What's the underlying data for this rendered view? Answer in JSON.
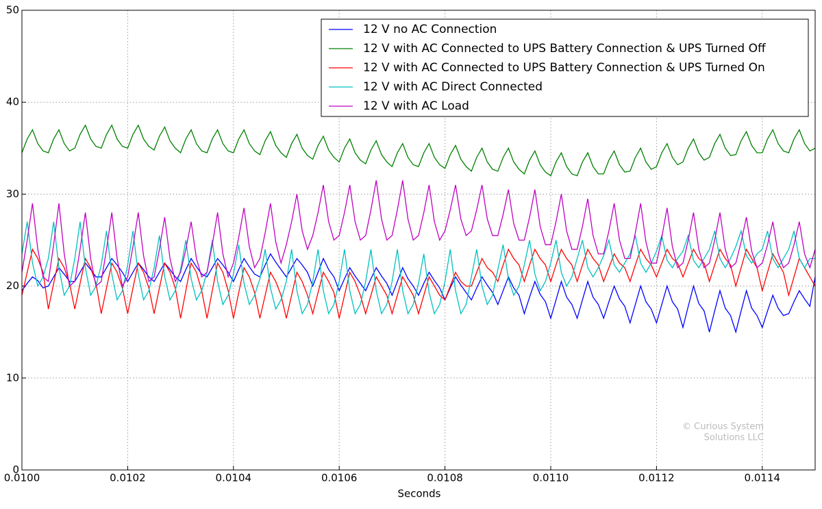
{
  "chart_data": {
    "type": "line",
    "xlabel": "Seconds",
    "annotation": [
      "© Curious System",
      "Solutions LLC"
    ],
    "grid": true,
    "legend": "upper right",
    "xlim": [
      0.01,
      0.0115
    ],
    "ylim": [
      0,
      50
    ],
    "xticks": [
      {
        "value": 0.01,
        "label": "0.0100"
      },
      {
        "value": 0.0102,
        "label": "0.0102"
      },
      {
        "value": 0.0104,
        "label": "0.0104"
      },
      {
        "value": 0.0106,
        "label": "0.0106"
      },
      {
        "value": 0.0108,
        "label": "0.0108"
      },
      {
        "value": 0.011,
        "label": "0.0110"
      },
      {
        "value": 0.0112,
        "label": "0.0112"
      },
      {
        "value": 0.0114,
        "label": "0.0114"
      }
    ],
    "yticks": [
      0,
      10,
      20,
      30,
      40,
      50
    ],
    "x": [
      0.01,
      0.01001,
      0.01002,
      0.01003,
      0.01004,
      0.01005,
      0.01006,
      0.01007,
      0.01008,
      0.01009,
      0.0101,
      0.01011,
      0.01012,
      0.01013,
      0.01014,
      0.01015,
      0.01016,
      0.01017,
      0.01018,
      0.01019,
      0.0102,
      0.01021,
      0.01022,
      0.01023,
      0.01024,
      0.01025,
      0.01026,
      0.01027,
      0.01028,
      0.01029,
      0.0103,
      0.01031,
      0.01032,
      0.01033,
      0.01034,
      0.01035,
      0.01036,
      0.01037,
      0.01038,
      0.01039,
      0.0104,
      0.01041,
      0.01042,
      0.01043,
      0.01044,
      0.01045,
      0.01046,
      0.01047,
      0.01048,
      0.01049,
      0.0105,
      0.01051,
      0.01052,
      0.01053,
      0.01054,
      0.01055,
      0.01056,
      0.01057,
      0.01058,
      0.01059,
      0.0106,
      0.01061,
      0.01062,
      0.01063,
      0.01064,
      0.01065,
      0.01066,
      0.01067,
      0.01068,
      0.01069,
      0.0107,
      0.01071,
      0.01072,
      0.01073,
      0.01074,
      0.01075,
      0.01076,
      0.01077,
      0.01078,
      0.01079,
      0.0108,
      0.01081,
      0.01082,
      0.01083,
      0.01084,
      0.01085,
      0.01086,
      0.01087,
      0.01088,
      0.01089,
      0.0109,
      0.01091,
      0.01092,
      0.01093,
      0.01094,
      0.01095,
      0.01096,
      0.01097,
      0.01098,
      0.01099,
      0.011,
      0.01101,
      0.01102,
      0.01103,
      0.01104,
      0.01105,
      0.01106,
      0.01107,
      0.01108,
      0.01109,
      0.0111,
      0.01111,
      0.01112,
      0.01113,
      0.01114,
      0.01115,
      0.01116,
      0.01117,
      0.01118,
      0.01119,
      0.0112,
      0.01121,
      0.01122,
      0.01123,
      0.01124,
      0.01125,
      0.01126,
      0.01127,
      0.01128,
      0.01129,
      0.0113,
      0.01131,
      0.01132,
      0.01133,
      0.01134,
      0.01135,
      0.01136,
      0.01137,
      0.01138,
      0.01139,
      0.0114,
      0.01141,
      0.01142,
      0.01143,
      0.01144,
      0.01145,
      0.01146,
      0.01147,
      0.01148,
      0.01149,
      0.0115
    ],
    "series": [
      {
        "name": "12 V no AC Connection",
        "color": "#0000ff",
        "values": [
          19.5,
          20.3,
          21,
          20.6,
          19.8,
          20,
          21,
          22,
          21.3,
          20.5,
          20.5,
          21.5,
          22.5,
          21.8,
          21,
          21,
          22,
          23,
          22.3,
          21.5,
          20.5,
          21.5,
          22.5,
          21.8,
          21,
          20.5,
          21.5,
          22.5,
          21.8,
          21,
          20.5,
          21.8,
          23,
          22.1,
          21.3,
          21,
          22,
          23,
          22.3,
          21.5,
          20.5,
          21.8,
          23,
          22.1,
          21.3,
          21,
          22.3,
          23.5,
          22.6,
          21.8,
          21,
          22,
          23,
          22.3,
          21.5,
          20,
          21.5,
          23,
          21.8,
          21,
          19.5,
          20.8,
          22,
          21.1,
          20.3,
          19.5,
          20.8,
          22,
          21.1,
          20.3,
          19,
          20.5,
          22,
          20.8,
          20,
          19,
          20.3,
          21.5,
          20.6,
          19.8,
          18.5,
          19.8,
          21,
          20.1,
          19.3,
          18.5,
          19.8,
          21,
          20.1,
          19.3,
          18,
          19.5,
          21,
          19.8,
          19,
          17,
          18.8,
          20.5,
          19.1,
          18.3,
          16.5,
          18.5,
          20.5,
          18.8,
          18,
          16.5,
          18.5,
          20.5,
          18.8,
          18,
          16.5,
          18.3,
          20,
          18.6,
          17.8,
          16,
          18,
          20,
          18.3,
          17.5,
          16,
          18,
          20,
          18.3,
          17.5,
          15.5,
          17.8,
          20,
          18.1,
          17.3,
          15,
          17.3,
          19.5,
          17.6,
          16.8,
          15,
          17.3,
          19.5,
          17.6,
          16.8,
          15.5,
          17.3,
          19,
          17.6,
          16.8,
          17,
          18.3,
          19.5,
          18.6,
          17.8,
          21
        ]
      },
      {
        "name": "12 V with AC Connected to UPS Battery Connection & UPS Turned Off",
        "color": "#008000",
        "values": [
          34.5,
          36,
          37,
          35.5,
          34.7,
          34.5,
          36,
          37,
          35.5,
          34.7,
          35,
          36.5,
          37.5,
          36,
          35.2,
          35,
          36.5,
          37.5,
          36,
          35.2,
          35,
          36.5,
          37.5,
          36,
          35.2,
          34.8,
          36.3,
          37.3,
          35.8,
          35,
          34.5,
          36,
          37,
          35.5,
          34.7,
          34.5,
          36,
          37,
          35.5,
          34.7,
          34.5,
          36,
          37,
          35.5,
          34.7,
          34.3,
          35.8,
          36.8,
          35.3,
          34.5,
          34,
          35.5,
          36.5,
          35,
          34.2,
          33.8,
          35.3,
          36.3,
          34.8,
          34,
          33.5,
          35,
          36,
          34.5,
          33.7,
          33.3,
          34.8,
          35.8,
          34.3,
          33.5,
          33,
          34.5,
          35.5,
          34,
          33.2,
          33,
          34.5,
          35.5,
          34,
          33.2,
          32.8,
          34.3,
          35.3,
          33.8,
          33,
          32.5,
          34,
          35,
          33.5,
          32.7,
          32.5,
          34,
          35,
          33.5,
          32.7,
          32.2,
          33.7,
          34.7,
          33.2,
          32.4,
          32,
          33.5,
          34.5,
          33,
          32.2,
          32,
          33.5,
          34.5,
          33,
          32.2,
          32.2,
          33.7,
          34.7,
          33.2,
          32.4,
          32.5,
          34,
          35,
          33.5,
          32.7,
          33,
          34.5,
          35.5,
          34,
          33.2,
          33.5,
          35,
          36,
          34.5,
          33.7,
          34,
          35.5,
          36.5,
          35,
          34.2,
          34.3,
          35.8,
          36.8,
          35.3,
          34.5,
          34.5,
          36,
          37,
          35.5,
          34.7,
          34.5,
          36,
          37,
          35.5,
          34.7,
          35
        ]
      },
      {
        "name": "12 V with AC Connected to UPS Battery Connection & UPS Turned On",
        "color": "#ff0000",
        "values": [
          19,
          21.5,
          24,
          23,
          21.5,
          17.5,
          20.3,
          23,
          22,
          20.3,
          17.5,
          20.3,
          23,
          22,
          20.3,
          17,
          19.8,
          22.5,
          21.5,
          19.8,
          17,
          19.8,
          22.5,
          21.5,
          19.8,
          17,
          19.8,
          22.5,
          21.5,
          19.8,
          16.5,
          19.5,
          22.5,
          21.5,
          19.5,
          16.5,
          19.5,
          22.5,
          21.5,
          19.5,
          16.5,
          19.3,
          22,
          21,
          19.3,
          16.5,
          19,
          21.5,
          20.5,
          19,
          16.5,
          19,
          21.5,
          20.5,
          19,
          17,
          19.3,
          21.5,
          20.5,
          19.3,
          16.5,
          19,
          21.5,
          20.5,
          19,
          17,
          19,
          21,
          20,
          19,
          17,
          19,
          21,
          20,
          19,
          17,
          19,
          21,
          20,
          19,
          18.5,
          20,
          21.5,
          20.5,
          20,
          20,
          21.5,
          23,
          22,
          21.5,
          20.5,
          22.3,
          24,
          23,
          22.3,
          20.5,
          22.3,
          24,
          23,
          22.3,
          20.5,
          22.3,
          24,
          23,
          22.3,
          20.5,
          22.3,
          24,
          23,
          22.3,
          20.5,
          22,
          23.5,
          22.5,
          22,
          20.5,
          22.3,
          24,
          23,
          22.3,
          21,
          22.5,
          24,
          23,
          22.5,
          21,
          22.5,
          24,
          23,
          22.5,
          20.5,
          22.3,
          24,
          23,
          22.3,
          20,
          22,
          24,
          23,
          22,
          19.5,
          21.5,
          23.5,
          22.5,
          21.5,
          19,
          21,
          23,
          22,
          21,
          20
        ]
      },
      {
        "name": "12 V with AC Direct Connected",
        "color": "#00bfbf",
        "values": [
          23.5,
          27,
          22.5,
          20,
          21,
          23,
          27,
          22,
          19,
          20,
          23,
          27,
          22,
          19,
          20,
          22.3,
          26,
          21.3,
          18.5,
          19.5,
          22.3,
          26,
          21.3,
          18.5,
          19.5,
          22,
          25.5,
          21,
          18.5,
          19.5,
          21.8,
          25,
          20.8,
          18.5,
          19.5,
          21.5,
          25,
          20.5,
          18,
          19,
          21.3,
          24.5,
          20.3,
          18,
          19,
          20.8,
          24,
          19.8,
          17.5,
          18.5,
          20.5,
          24,
          19.5,
          17,
          18,
          20.5,
          24,
          19.5,
          17,
          18,
          20.5,
          24,
          19.5,
          17,
          18,
          20.5,
          24,
          19.5,
          17,
          18,
          20.5,
          24,
          19.5,
          17,
          18,
          20.3,
          23.5,
          19.3,
          17,
          18,
          20.5,
          24,
          19.5,
          17,
          18,
          21,
          24,
          20,
          18,
          19,
          21.8,
          24.5,
          20.8,
          19,
          20,
          22.3,
          25,
          21.3,
          19.5,
          20.5,
          22.5,
          25,
          21.5,
          20,
          21,
          23,
          25,
          22,
          21,
          22,
          23.3,
          25,
          22.3,
          21.5,
          22.5,
          23.5,
          25.5,
          22.5,
          21.5,
          22.5,
          23.8,
          25.5,
          22.8,
          22,
          23,
          23.8,
          25.5,
          22.8,
          22,
          23,
          24,
          26,
          23,
          22,
          23,
          24.3,
          26,
          23.3,
          22.5,
          23.5,
          24,
          26,
          23,
          22,
          23,
          24,
          26,
          23,
          22,
          23,
          23
        ]
      },
      {
        "name": "12 V with AC Load",
        "color": "#bf00bf",
        "values": [
          21.5,
          25,
          29,
          24,
          21,
          20.5,
          24.5,
          29,
          23.5,
          20,
          20.5,
          24,
          28,
          23,
          20,
          20.5,
          24,
          28,
          23,
          20,
          21,
          24.3,
          28,
          23.3,
          20.5,
          21,
          24,
          27.5,
          23,
          20.5,
          21.5,
          24,
          27,
          23,
          21,
          21.5,
          24.5,
          28,
          23.5,
          21,
          22.5,
          25.3,
          28.5,
          24.3,
          22,
          23,
          25.8,
          29,
          24.8,
          22.5,
          24.5,
          27,
          30,
          26,
          24,
          25.5,
          28,
          31,
          27,
          25,
          25.5,
          28,
          31,
          27,
          25,
          25.5,
          28.3,
          31.5,
          27.3,
          25,
          25.5,
          28.3,
          31.5,
          27.3,
          25,
          25.5,
          28,
          31,
          27,
          25,
          26,
          28.3,
          31,
          27.3,
          25.5,
          26,
          28.3,
          31,
          27.3,
          25.5,
          25.5,
          27.8,
          30.5,
          26.8,
          25,
          25,
          27.5,
          30.5,
          26.5,
          24.5,
          24.5,
          27,
          30,
          26,
          24,
          24,
          26.5,
          29.5,
          25.5,
          23.5,
          23.5,
          26,
          29,
          25,
          23,
          23,
          25.8,
          29,
          24.8,
          22.5,
          22.5,
          25.3,
          28.5,
          24.3,
          22,
          22.5,
          25,
          28,
          24,
          22,
          22.5,
          25,
          28,
          24,
          22,
          22.5,
          24.8,
          27.5,
          23.8,
          22,
          22.5,
          24.5,
          27,
          23.5,
          22,
          22.5,
          24.5,
          27,
          23.5,
          22,
          24
        ]
      }
    ]
  }
}
